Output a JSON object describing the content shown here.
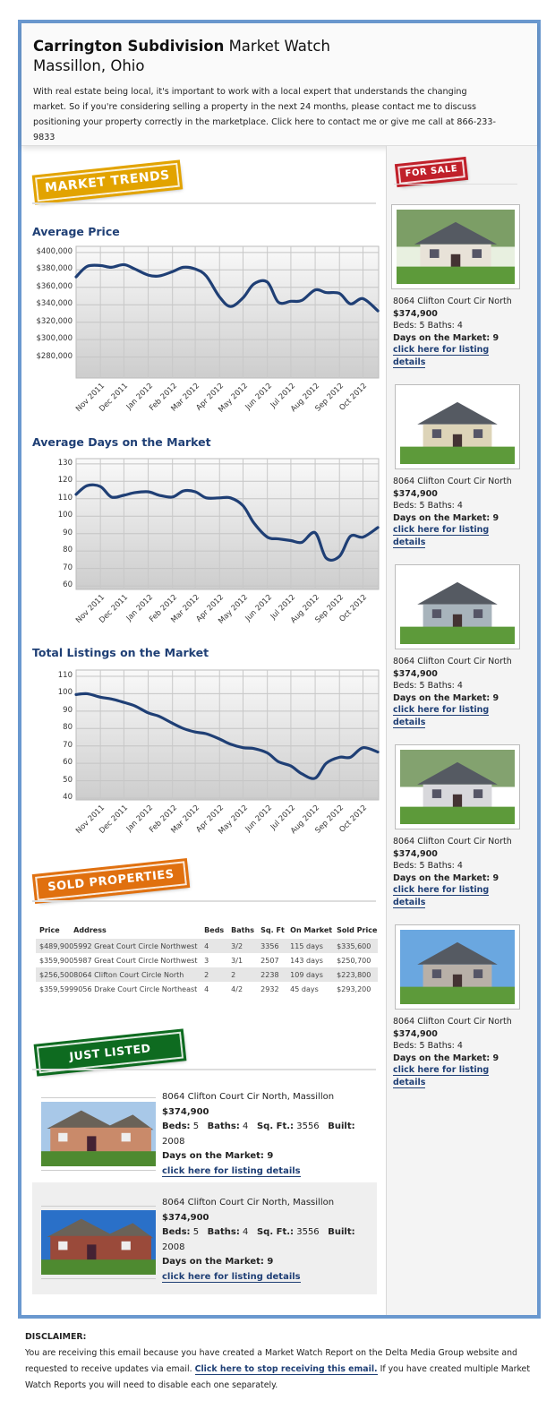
{
  "header": {
    "title_bold": "Carrington Subdivision",
    "title_rest": " Market Watch",
    "subtitle": "Massillon, Ohio",
    "intro": "With real estate being local, it's important to work with a local expert that understands the changing market. So if you're considering selling a property in the next 24 months, please contact me to discuss positioning your property correctly in the marketplace. Click here to contact me or give me call at 866-233-9833"
  },
  "banners": {
    "market_trends": "MARKET TRENDS",
    "for_sale": "FOR SALE",
    "sold_properties": "SOLD PROPERTIES",
    "just_listed": "JUST LISTED"
  },
  "colors": {
    "frame": "#6a98cf",
    "line": "#1f3f75",
    "market_trends": "#e2a300",
    "for_sale": "#c0202a",
    "sold_properties": "#e0700f",
    "just_listed": "#0e6b20"
  },
  "chart_data": [
    {
      "type": "line",
      "title": "Average Price",
      "ylim": [
        256000,
        407000
      ],
      "yticks": [
        400000,
        380000,
        360000,
        340000,
        320000,
        300000,
        280000
      ],
      "ytick_labels": [
        "$400,000",
        "$380,000",
        "$360,000",
        "$340,000",
        "$320,000",
        "$300,000",
        "$280,000"
      ],
      "xlim": [
        "2011-10-01",
        "2012-10-21"
      ],
      "xtick_dates": [
        "2011-11-01",
        "2011-12-01",
        "2012-01-01",
        "2012-02-01",
        "2012-03-01",
        "2012-04-01",
        "2012-05-01",
        "2012-06-01",
        "2012-07-01",
        "2012-08-01",
        "2012-09-01",
        "2012-10-01"
      ],
      "xtick_labels": [
        "Nov 2011",
        "Dec 2011",
        "Jan 2012",
        "Feb 2012",
        "Mar 2012",
        "Apr 2012",
        "May 2012",
        "Jun 2012",
        "Jul 2012",
        "Aug 2012",
        "Sep 2012",
        "Oct 2012"
      ],
      "grid": true,
      "x": [
        "2011-10-01",
        "2011-10-15",
        "2011-11-01",
        "2011-11-15",
        "2011-12-01",
        "2011-12-15",
        "2012-01-01",
        "2012-01-15",
        "2012-02-01",
        "2012-02-15",
        "2012-03-01",
        "2012-03-15",
        "2012-04-01",
        "2012-04-15",
        "2012-05-01",
        "2012-05-15",
        "2012-06-01",
        "2012-06-15",
        "2012-07-01",
        "2012-07-15",
        "2012-08-01",
        "2012-08-15",
        "2012-09-01",
        "2012-09-15",
        "2012-10-01",
        "2012-10-20"
      ],
      "y": [
        372000,
        384000,
        385000,
        383000,
        386000,
        381000,
        374000,
        373000,
        378000,
        383000,
        381000,
        373000,
        349000,
        338000,
        348000,
        364000,
        366000,
        343000,
        344000,
        345000,
        357000,
        354000,
        353000,
        341000,
        347000,
        333000
      ]
    },
    {
      "type": "line",
      "title": "Average Days on the Market",
      "ylim": [
        58,
        133
      ],
      "yticks": [
        130,
        120,
        110,
        100,
        90,
        80,
        70,
        60
      ],
      "ytick_labels": [
        "130",
        "120",
        "110",
        "100",
        "90",
        "80",
        "70",
        "60"
      ],
      "xlim": [
        "2011-10-01",
        "2012-10-21"
      ],
      "xtick_dates": [
        "2011-11-01",
        "2011-12-01",
        "2012-01-01",
        "2012-02-01",
        "2012-03-01",
        "2012-04-01",
        "2012-05-01",
        "2012-06-01",
        "2012-07-01",
        "2012-08-01",
        "2012-09-01",
        "2012-10-01"
      ],
      "xtick_labels": [
        "Nov 2011",
        "Dec 2011",
        "Jan 2012",
        "Feb 2012",
        "Mar 2012",
        "Apr 2012",
        "May 2012",
        "Jun 2012",
        "Jul 2012",
        "Aug 2012",
        "Sep 2012",
        "Oct 2012"
      ],
      "grid": true,
      "x": [
        "2011-10-01",
        "2011-10-15",
        "2011-11-01",
        "2011-11-15",
        "2011-12-01",
        "2011-12-15",
        "2012-01-01",
        "2012-01-15",
        "2012-02-01",
        "2012-02-15",
        "2012-03-01",
        "2012-03-15",
        "2012-04-01",
        "2012-04-15",
        "2012-05-01",
        "2012-05-15",
        "2012-06-01",
        "2012-06-15",
        "2012-07-01",
        "2012-07-15",
        "2012-08-01",
        "2012-08-15",
        "2012-09-01",
        "2012-09-15",
        "2012-10-01",
        "2012-10-20"
      ],
      "y": [
        112.5,
        117.5,
        117,
        111,
        112,
        113.5,
        114,
        112,
        111,
        114.5,
        114,
        110.5,
        110.5,
        110.5,
        106,
        96,
        88,
        87,
        86,
        85,
        90.5,
        76,
        77,
        88.5,
        88,
        93.5
      ]
    },
    {
      "type": "line",
      "title": "Total Listings on the Market",
      "ylim": [
        39,
        113.6
      ],
      "yticks": [
        110,
        100,
        90,
        80,
        70,
        60,
        50,
        40
      ],
      "ytick_labels": [
        "110",
        "100",
        "90",
        "80",
        "70",
        "60",
        "50",
        "40"
      ],
      "xlim": [
        "2011-10-01",
        "2012-10-21"
      ],
      "xtick_dates": [
        "2011-11-01",
        "2011-12-01",
        "2012-01-01",
        "2012-02-01",
        "2012-03-01",
        "2012-04-01",
        "2012-05-01",
        "2012-06-01",
        "2012-07-01",
        "2012-08-01",
        "2012-09-01",
        "2012-10-01"
      ],
      "xtick_labels": [
        "Nov 2011",
        "Dec 2011",
        "Jan 2012",
        "Feb 2012",
        "Mar 2012",
        "Apr 2012",
        "May 2012",
        "Jun 2012",
        "Jul 2012",
        "Aug 2012",
        "Sep 2012",
        "Oct 2012"
      ],
      "grid": true,
      "x": [
        "2011-10-01",
        "2011-10-15",
        "2011-11-01",
        "2011-11-15",
        "2011-12-01",
        "2011-12-15",
        "2012-01-01",
        "2012-01-15",
        "2012-02-01",
        "2012-02-15",
        "2012-03-01",
        "2012-03-15",
        "2012-04-01",
        "2012-04-15",
        "2012-05-01",
        "2012-05-15",
        "2012-06-01",
        "2012-06-15",
        "2012-07-01",
        "2012-07-15",
        "2012-08-01",
        "2012-08-15",
        "2012-09-01",
        "2012-09-15",
        "2012-10-01",
        "2012-10-20"
      ],
      "y": [
        99.5,
        100,
        98,
        97,
        95,
        93,
        89,
        87,
        83,
        80,
        78,
        77,
        74,
        71,
        69,
        68.5,
        66,
        61,
        58.5,
        54,
        51.5,
        60,
        63.5,
        63.5,
        69,
        66.5
      ]
    }
  ],
  "sold": {
    "headers": [
      "Price",
      "Address",
      "Beds",
      "Baths",
      "Sq. Ft",
      "On Market",
      "Sold Price"
    ],
    "rows": [
      [
        "$489,900",
        "5992 Great Court Circle Northwest",
        "4",
        "3/2",
        "3356",
        "115 days",
        "$335,600"
      ],
      [
        "$359,900",
        "5987 Great Court Circle Northwest",
        "3",
        "3/1",
        "2507",
        "143 days",
        "$250,700"
      ],
      [
        "$256,500",
        "8064 Clifton Court Circle North",
        "2",
        "2",
        "2238",
        "109 days",
        "$223,800"
      ],
      [
        "$359,599",
        "9056 Drake Court Circle Northeast",
        "4",
        "4/2",
        "2932",
        "45 days",
        "$293,200"
      ]
    ]
  },
  "for_sale": [
    {
      "address": "8064 Clifton Court Cir North",
      "price": "$374,900",
      "beds_baths": "Beds: 5 Baths: 4",
      "dom": "Days on the Market: 9",
      "link": "click here for listing details"
    },
    {
      "address": "8064 Clifton Court Cir North",
      "price": "$374,900",
      "beds_baths": "Beds: 5 Baths: 4",
      "dom": "Days on the Market: 9",
      "link": "click here for listing details"
    },
    {
      "address": "8064 Clifton Court Cir North",
      "price": "$374,900",
      "beds_baths": "Beds: 5 Baths: 4",
      "dom": "Days on the Market: 9",
      "link": "click here for listing details"
    },
    {
      "address": "8064 Clifton Court Cir North",
      "price": "$374,900",
      "beds_baths": "Beds: 5 Baths: 4",
      "dom": "Days on the Market: 9",
      "link": "click here for listing details"
    },
    {
      "address": "8064 Clifton Court Cir North",
      "price": "$374,900",
      "beds_baths": "Beds: 5 Baths: 4",
      "dom": "Days on the Market: 9",
      "link": "click here for listing details"
    }
  ],
  "just_listed": [
    {
      "address": "8064 Clifton Court Cir North, Massillon",
      "price": "$374,900",
      "beds_label": "Beds:",
      "beds": "5",
      "baths_label": "Baths:",
      "baths": "4",
      "sqft_label": "Sq. Ft.:",
      "sqft": "3556",
      "built_label": "Built:",
      "built": "2008",
      "dom": "Days on the Market: 9",
      "link": "click here for listing details"
    },
    {
      "address": "8064 Clifton Court Cir North, Massillon",
      "price": "$374,900",
      "beds_label": "Beds:",
      "beds": "5",
      "baths_label": "Baths:",
      "baths": "4",
      "sqft_label": "Sq. Ft.:",
      "sqft": "3556",
      "built_label": "Built:",
      "built": "2008",
      "dom": "Days on the Market: 9",
      "link": "click here for listing details"
    }
  ],
  "disclaimer": {
    "heading": "DISCLAIMER:",
    "text_before": "You are receiving this email because you have created a Market Watch Report on the Delta Media Group website and requested to receive updates via email. ",
    "link": "Click here to stop receiving this email.",
    "text_after": " If you have created multiple Market Watch Reports you will need to disable each one separately."
  }
}
